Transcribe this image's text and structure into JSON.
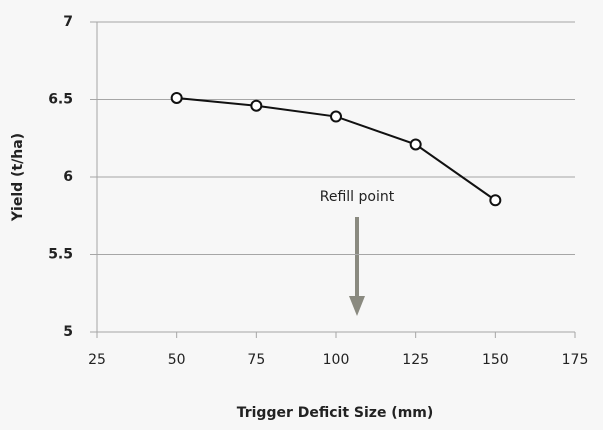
{
  "chart_data": {
    "type": "line",
    "xlabel": "Trigger Deficit Size (mm)",
    "ylabel": "Yield (t/ha)",
    "x": [
      50,
      75,
      100,
      125,
      150
    ],
    "series": [
      {
        "color": "#111111",
        "values": [
          6.51,
          6.46,
          6.39,
          6.21,
          5.85
        ]
      }
    ],
    "xlim": [
      25,
      175
    ],
    "xticks": [
      25,
      50,
      75,
      100,
      125,
      150,
      175
    ],
    "ylim": [
      5,
      7
    ],
    "yticks": [
      5,
      5.5,
      6,
      6.5,
      7
    ],
    "grid": true,
    "annotations": [
      {
        "text": "Refill point"
      }
    ]
  }
}
